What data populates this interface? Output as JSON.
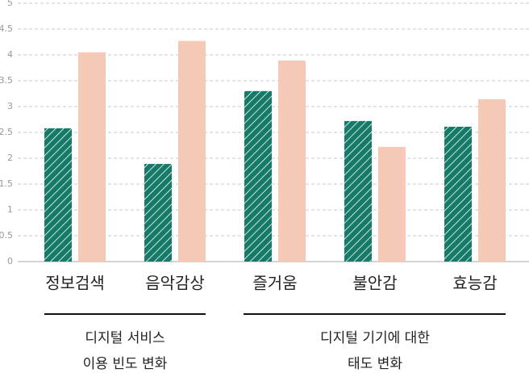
{
  "chart_data": {
    "type": "bar",
    "categories": [
      "정보검색",
      "음악감상",
      "즐거움",
      "불안감",
      "효능감"
    ],
    "series": [
      {
        "color": "#167a68",
        "hatch": true,
        "values": [
          2.58,
          1.89,
          3.3,
          2.72,
          2.61
        ]
      },
      {
        "color": "#f6c9b6",
        "hatch": false,
        "values": [
          4.05,
          4.27,
          3.89,
          2.22,
          3.14
        ]
      }
    ],
    "ylim": [
      0,
      5
    ],
    "yticks": [
      0,
      0.5,
      1,
      1.5,
      2,
      2.5,
      3,
      3.5,
      4,
      4.5,
      5
    ],
    "grid": true,
    "category_groups": [
      {
        "lines": [
          "디지털 서비스",
          "이용 빈도 변화"
        ]
      },
      {
        "lines": [
          "디지털 기기에 대한",
          "태도 변화"
        ]
      }
    ]
  }
}
